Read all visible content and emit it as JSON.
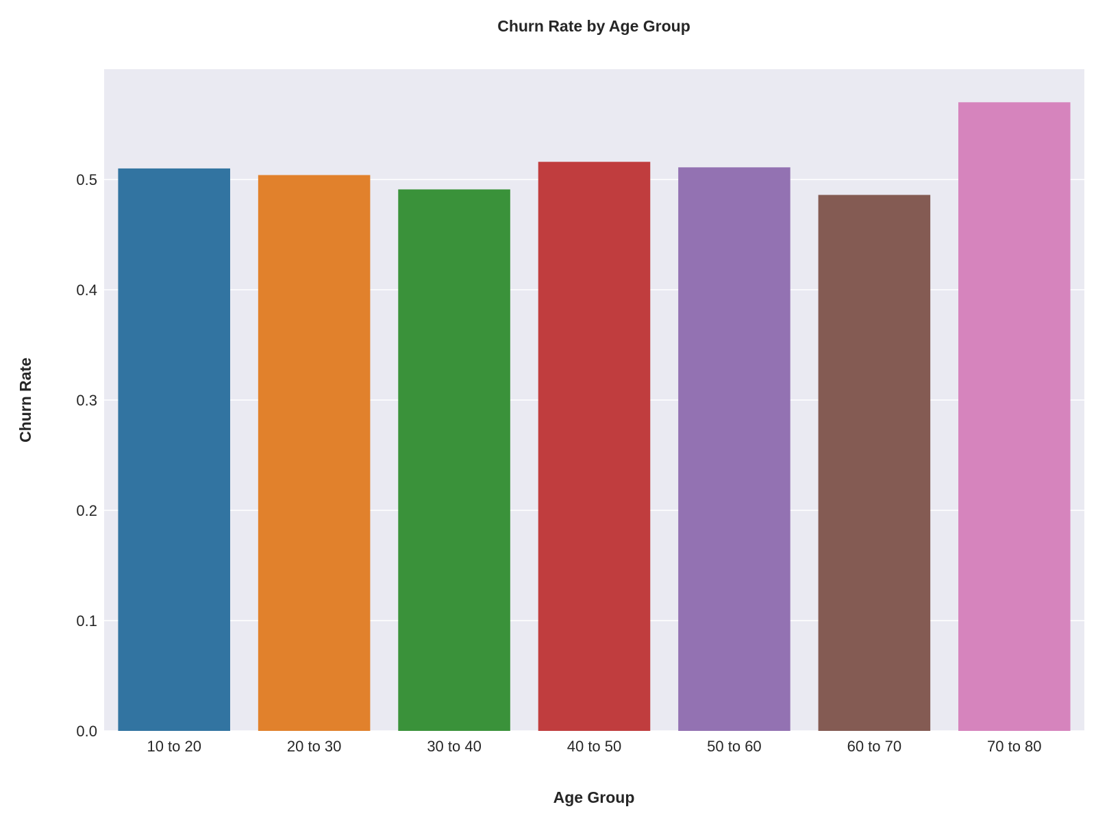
{
  "chart_data": {
    "type": "bar",
    "title": "Churn Rate by Age Group",
    "xlabel": "Age Group",
    "ylabel": "Churn Rate",
    "categories": [
      "10 to 20",
      "20 to 30",
      "30 to 40",
      "40 to 50",
      "50 to 60",
      "60 to 70",
      "70 to 80"
    ],
    "values": [
      0.51,
      0.504,
      0.491,
      0.516,
      0.511,
      0.486,
      0.57
    ],
    "colors": [
      "#3274a1",
      "#e1812c",
      "#3a923a",
      "#c03d3e",
      "#9372b2",
      "#845b53",
      "#d684bd"
    ],
    "ylim": [
      0,
      0.6
    ],
    "yticks": [
      0.0,
      0.1,
      0.2,
      0.3,
      0.4,
      0.5
    ],
    "ytick_labels": [
      "0.0",
      "0.1",
      "0.2",
      "0.3",
      "0.4",
      "0.5"
    ],
    "grid": true,
    "legend": "none",
    "background_color": "#eaeaf2",
    "grid_color": "#ffffff"
  }
}
